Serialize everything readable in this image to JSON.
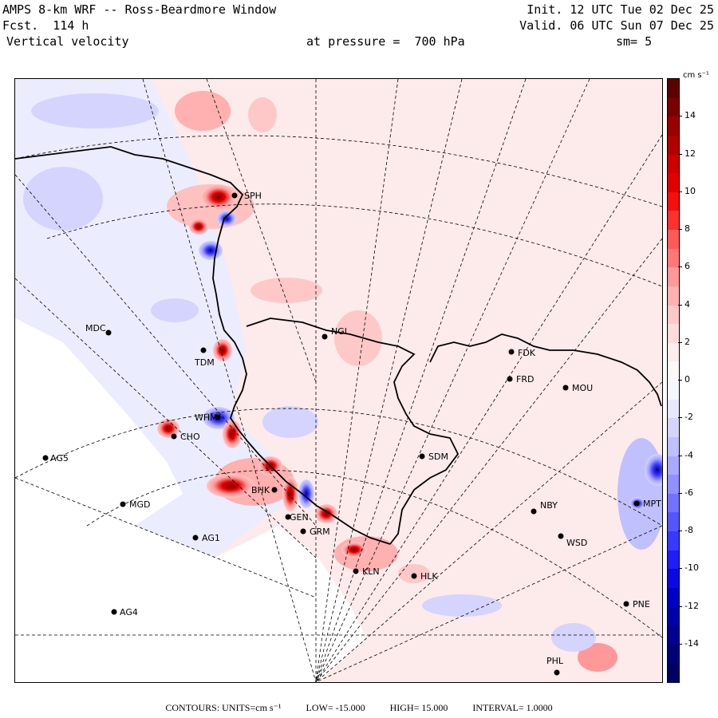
{
  "header": {
    "title": "AMPS 8-km WRF -- Ross-Beardmore Window",
    "init": "Init. 12 UTC Tue 02 Dec 25",
    "fcst": "Fcst.  114 h",
    "valid": "Valid. 06 UTC Sun 07 Dec 25",
    "field": "Vertical velocity",
    "level": "at pressure =  700 hPa",
    "smooth": "sm= 5"
  },
  "colorbar": {
    "units": "cm s⁻¹",
    "ticks": [
      "14",
      "12",
      "10",
      "8",
      "6",
      "4",
      "2",
      "0",
      "-2",
      "-4",
      "-6",
      "-8",
      "-10",
      "-12",
      "-14"
    ],
    "tick_values": [
      14,
      12,
      10,
      8,
      6,
      4,
      2,
      0,
      -2,
      -4,
      -6,
      -8,
      -10,
      -12,
      -14
    ],
    "range": [
      -16,
      16
    ],
    "colors_top_to_bottom": [
      "#5c0000",
      "#7a0000",
      "#990000",
      "#b00000",
      "#cc0000",
      "#e00000",
      "#f51010",
      "#ff3030",
      "#ff5a5a",
      "#ff7878",
      "#ff9898",
      "#ffb0b0",
      "#ffc8c8",
      "#ffdcdc",
      "#ffecec",
      "#fff8f8",
      "#f6f6ff",
      "#e8e8ff",
      "#d4d4ff",
      "#c0c0ff",
      "#a8a8ff",
      "#9090ff",
      "#7272ff",
      "#5555ff",
      "#3838ff",
      "#1e1ef5",
      "#0a0ae0",
      "#0000c4",
      "#0000a8",
      "#000090",
      "#000078",
      "#000060"
    ]
  },
  "stations": [
    {
      "name": "SPH"
    },
    {
      "name": "MDC"
    },
    {
      "name": "TDM"
    },
    {
      "name": "NGL"
    },
    {
      "name": "FDK"
    },
    {
      "name": "FRD"
    },
    {
      "name": "MOU"
    },
    {
      "name": "WHM"
    },
    {
      "name": "CHO"
    },
    {
      "name": "AG5"
    },
    {
      "name": "SDM"
    },
    {
      "name": "BHK"
    },
    {
      "name": "MGD"
    },
    {
      "name": "NBY"
    },
    {
      "name": "MPT"
    },
    {
      "name": "GEN"
    },
    {
      "name": "GRM"
    },
    {
      "name": "AG1"
    },
    {
      "name": "WSD"
    },
    {
      "name": "KLN"
    },
    {
      "name": "HLK"
    },
    {
      "name": "AG4"
    },
    {
      "name": "PNE"
    },
    {
      "name": "PHL"
    }
  ],
  "footer": {
    "contours": "CONTOURS:  UNITS=cm s⁻¹",
    "low": "LOW= -15.000",
    "high": "HIGH=  15.000",
    "interval": "INTERVAL=   1.0000"
  }
}
